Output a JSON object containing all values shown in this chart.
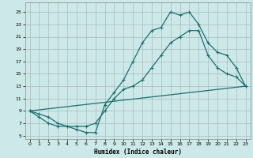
{
  "xlabel": "Humidex (Indice chaleur)",
  "bg_color": "#cce8e8",
  "line_color": "#1a7070",
  "xlim": [
    -0.5,
    23.5
  ],
  "ylim": [
    4.5,
    26.5
  ],
  "xticks": [
    0,
    1,
    2,
    3,
    4,
    5,
    6,
    7,
    8,
    9,
    10,
    11,
    12,
    13,
    14,
    15,
    16,
    17,
    18,
    19,
    20,
    21,
    22,
    23
  ],
  "yticks": [
    5,
    7,
    9,
    11,
    13,
    15,
    17,
    19,
    21,
    23,
    25
  ],
  "line1_x": [
    0,
    1,
    2,
    3,
    4,
    5,
    6,
    7,
    8,
    9,
    10,
    11,
    12,
    13,
    14,
    15,
    16,
    17,
    18,
    19,
    20,
    21,
    22,
    23
  ],
  "line1_y": [
    9,
    8,
    7,
    6.5,
    6.5,
    6,
    5.5,
    5.5,
    10,
    12,
    14,
    17,
    20,
    22,
    22.5,
    25,
    24.5,
    25,
    23,
    20,
    18.5,
    18,
    16,
    13
  ],
  "line2_x": [
    0,
    1,
    2,
    3,
    4,
    5,
    6,
    7,
    8,
    9,
    10,
    11,
    12,
    13,
    14,
    15,
    16,
    17,
    18,
    19,
    20,
    21,
    22,
    23
  ],
  "line2_y": [
    9,
    8.5,
    8,
    7,
    6.5,
    6.5,
    6.5,
    7,
    9,
    11,
    12.5,
    13,
    14,
    16,
    18,
    20,
    21,
    22,
    22,
    18,
    16,
    15,
    14.5,
    13
  ],
  "line3_x": [
    0,
    23
  ],
  "line3_y": [
    9,
    13
  ]
}
